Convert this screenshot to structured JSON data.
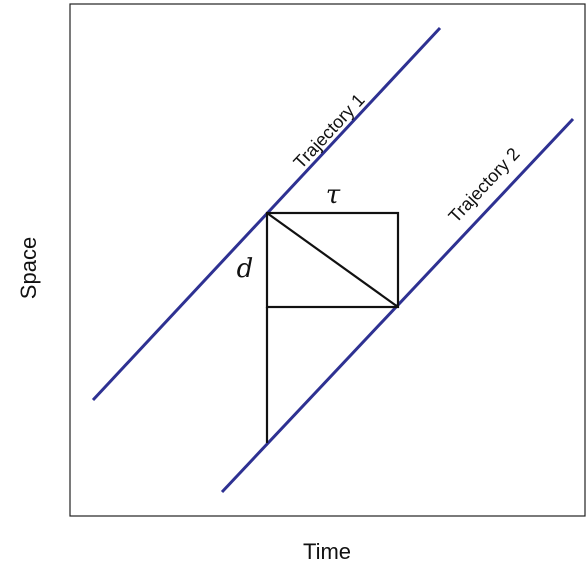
{
  "axes": {
    "x_label": "Time",
    "y_label": "Space"
  },
  "trajectories": [
    {
      "label": "Trajectory 1"
    },
    {
      "label": "Trajectory 2"
    }
  ],
  "symbols": {
    "headway": "τ",
    "spacing": "d"
  }
}
